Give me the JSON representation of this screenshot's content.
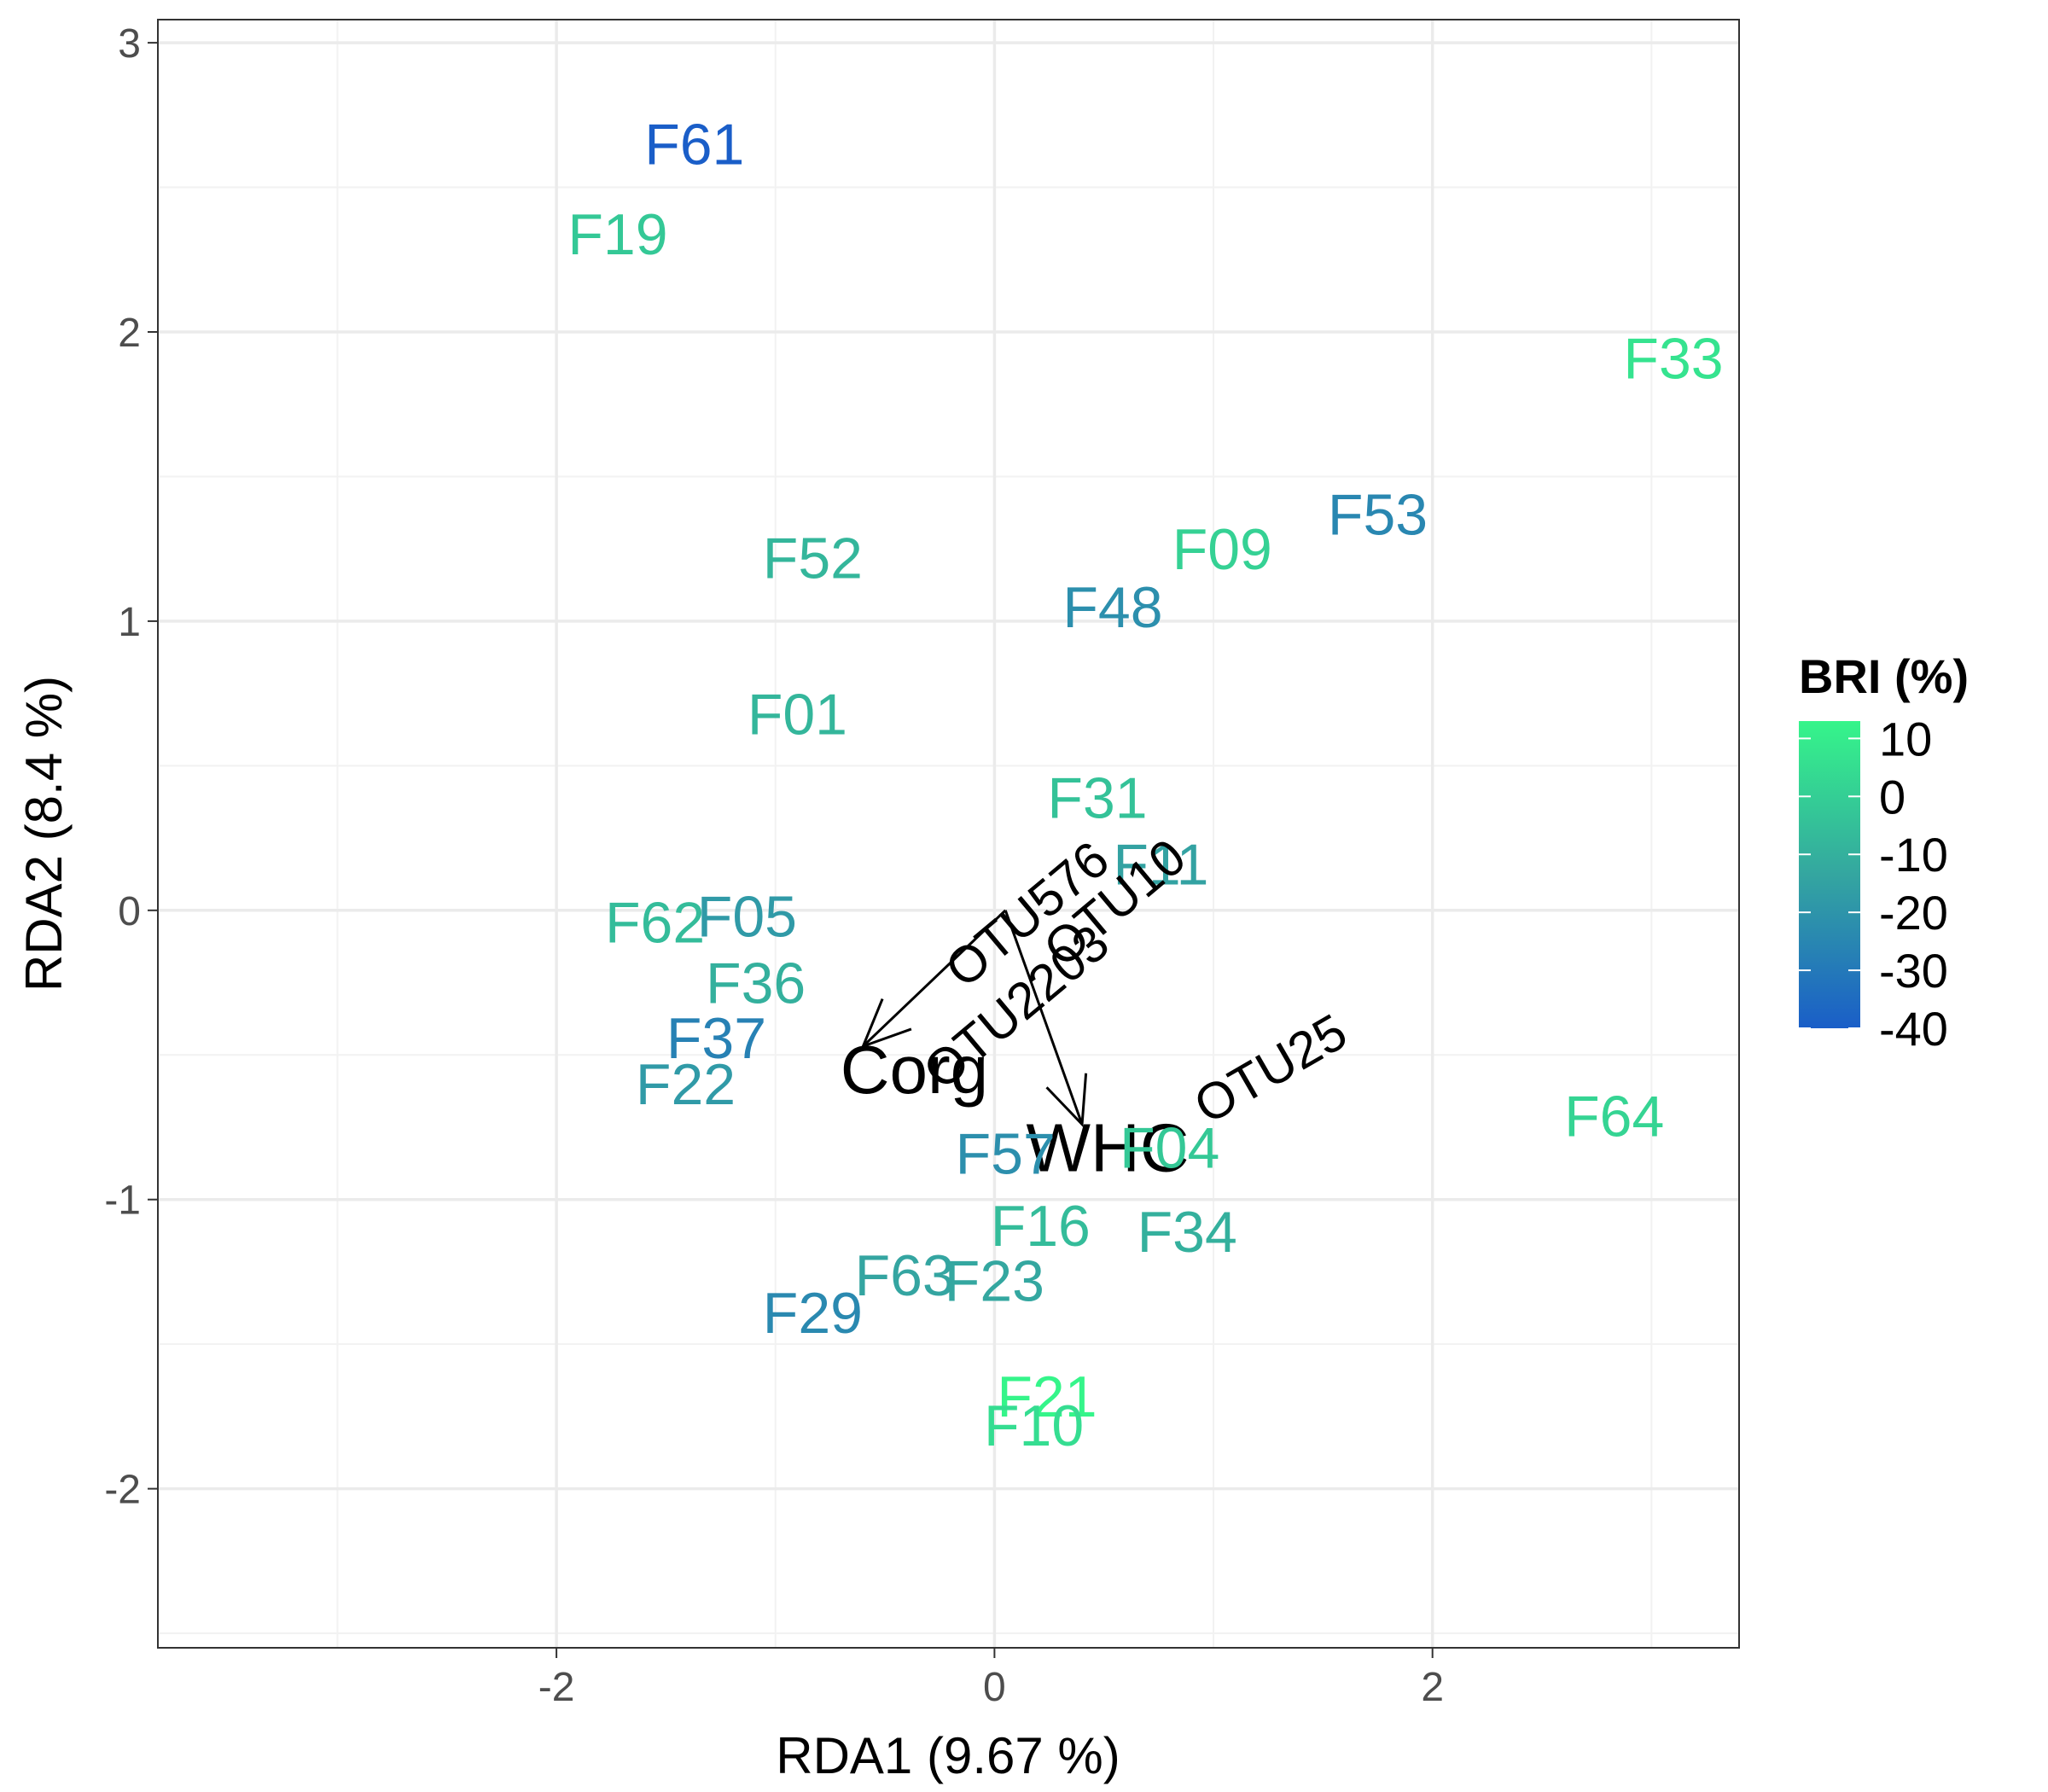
{
  "chart_data": {
    "type": "scatter",
    "xlabel": "RDA1 (9.67 %)",
    "ylabel": "RDA2 (8.4 %)",
    "xlim": [
      -3.82,
      3.4
    ],
    "ylim": [
      -2.55,
      3.08
    ],
    "x_ticks": [
      -2,
      0,
      2
    ],
    "y_ticks": [
      -2,
      -1,
      0,
      1,
      2,
      3
    ],
    "x_tick_labels": [
      "-2",
      "0",
      "2"
    ],
    "y_tick_labels": [
      "-2",
      "-1",
      "0",
      "1",
      "2",
      "3"
    ],
    "grid": true,
    "color_scale": {
      "name": "BRI (%)",
      "min": -40,
      "max": 13,
      "low_color": "#1a5ec8",
      "mid_color": "#34a6a0",
      "high_color": "#35f58a",
      "ticks": [
        10,
        0,
        -10,
        -20,
        -30,
        -40
      ],
      "tick_labels": [
        "10",
        "0",
        "-10",
        "-20",
        "-30",
        "-40"
      ]
    },
    "points": [
      {
        "label": "F61",
        "x": -1.37,
        "y": 2.65,
        "bri": -40
      },
      {
        "label": "F19",
        "x": -1.72,
        "y": 2.34,
        "bri": -2
      },
      {
        "label": "F33",
        "x": 3.1,
        "y": 1.91,
        "bri": 7
      },
      {
        "label": "F52",
        "x": -0.83,
        "y": 1.22,
        "bri": -8
      },
      {
        "label": "F53",
        "x": 1.75,
        "y": 1.37,
        "bri": -25
      },
      {
        "label": "F09",
        "x": 1.04,
        "y": 1.25,
        "bri": 1
      },
      {
        "label": "F48",
        "x": 0.54,
        "y": 1.05,
        "bri": -22
      },
      {
        "label": "F01",
        "x": -0.9,
        "y": 0.68,
        "bri": -8
      },
      {
        "label": "F31",
        "x": 0.47,
        "y": 0.39,
        "bri": -4
      },
      {
        "label": "F11",
        "x": 0.76,
        "y": 0.16,
        "bri": -15
      },
      {
        "label": "F62",
        "x": -1.55,
        "y": -0.04,
        "bri": -6
      },
      {
        "label": "F05",
        "x": -1.13,
        "y": -0.02,
        "bri": -18
      },
      {
        "label": "F36",
        "x": -1.09,
        "y": -0.25,
        "bri": -10
      },
      {
        "label": "F37",
        "x": -1.27,
        "y": -0.44,
        "bri": -27
      },
      {
        "label": "F22",
        "x": -1.41,
        "y": -0.6,
        "bri": -18
      },
      {
        "label": "F64",
        "x": 2.83,
        "y": -0.71,
        "bri": 2
      },
      {
        "label": "F57",
        "x": 0.05,
        "y": -0.84,
        "bri": -22
      },
      {
        "label": "F04",
        "x": 0.8,
        "y": -0.82,
        "bri": -2
      },
      {
        "label": "F16",
        "x": 0.21,
        "y": -1.09,
        "bri": -6
      },
      {
        "label": "F34",
        "x": 0.88,
        "y": -1.11,
        "bri": -10
      },
      {
        "label": "F63",
        "x": -0.41,
        "y": -1.26,
        "bri": -14
      },
      {
        "label": "F23",
        "x": 0.0,
        "y": -1.28,
        "bri": -13
      },
      {
        "label": "F29",
        "x": -0.83,
        "y": -1.39,
        "bri": -24
      },
      {
        "label": "F21",
        "x": 0.24,
        "y": -1.68,
        "bri": 13
      },
      {
        "label": "F10",
        "x": 0.18,
        "y": -1.78,
        "bri": 5
      }
    ],
    "vectors": [
      {
        "label": "Corg",
        "x": -0.6,
        "y": -0.47
      },
      {
        "label": "WHC",
        "x": 0.4,
        "y": -0.74
      }
    ],
    "vector_origin": {
      "x": 0.05,
      "y": 0.0
    },
    "species": [
      {
        "label": "OTU576",
        "x": 0.2,
        "y": -0.06,
        "angle": 40
      },
      {
        "label": "OTU10",
        "x": 0.6,
        "y": -0.02,
        "angle": 40
      },
      {
        "label": "OTU2203",
        "x": 0.15,
        "y": -0.38,
        "angle": 40
      },
      {
        "label": "OTU25",
        "x": 1.3,
        "y": -0.6,
        "angle": 30
      }
    ]
  }
}
